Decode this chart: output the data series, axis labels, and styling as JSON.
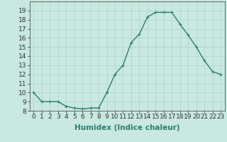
{
  "x": [
    0,
    1,
    2,
    3,
    4,
    5,
    6,
    7,
    8,
    9,
    10,
    11,
    12,
    13,
    14,
    15,
    16,
    17,
    18,
    19,
    20,
    21,
    22,
    23
  ],
  "y": [
    10,
    9,
    9,
    9,
    8.5,
    8.3,
    8.2,
    8.3,
    8.3,
    10,
    12,
    13,
    15.5,
    16.4,
    18.3,
    18.8,
    18.8,
    18.8,
    17.5,
    16.3,
    15,
    13.5,
    12.3,
    12
  ],
  "line_color": "#2e7d6e",
  "marker": "+",
  "marker_size": 3,
  "bg_color": "#c8e8e0",
  "grid_color": "#b0d8d0",
  "xlabel": "Humidex (Indice chaleur)",
  "ylim": [
    8,
    20
  ],
  "yticks": [
    8,
    9,
    10,
    11,
    12,
    13,
    14,
    15,
    16,
    17,
    18,
    19
  ],
  "xlim": [
    -0.5,
    23.5
  ],
  "xticks": [
    0,
    1,
    2,
    3,
    4,
    5,
    6,
    7,
    8,
    9,
    10,
    11,
    12,
    13,
    14,
    15,
    16,
    17,
    18,
    19,
    20,
    21,
    22,
    23
  ],
  "xlabel_fontsize": 7.5,
  "tick_fontsize": 6.5,
  "line_width": 1.0,
  "marker_edge_width": 0.8
}
